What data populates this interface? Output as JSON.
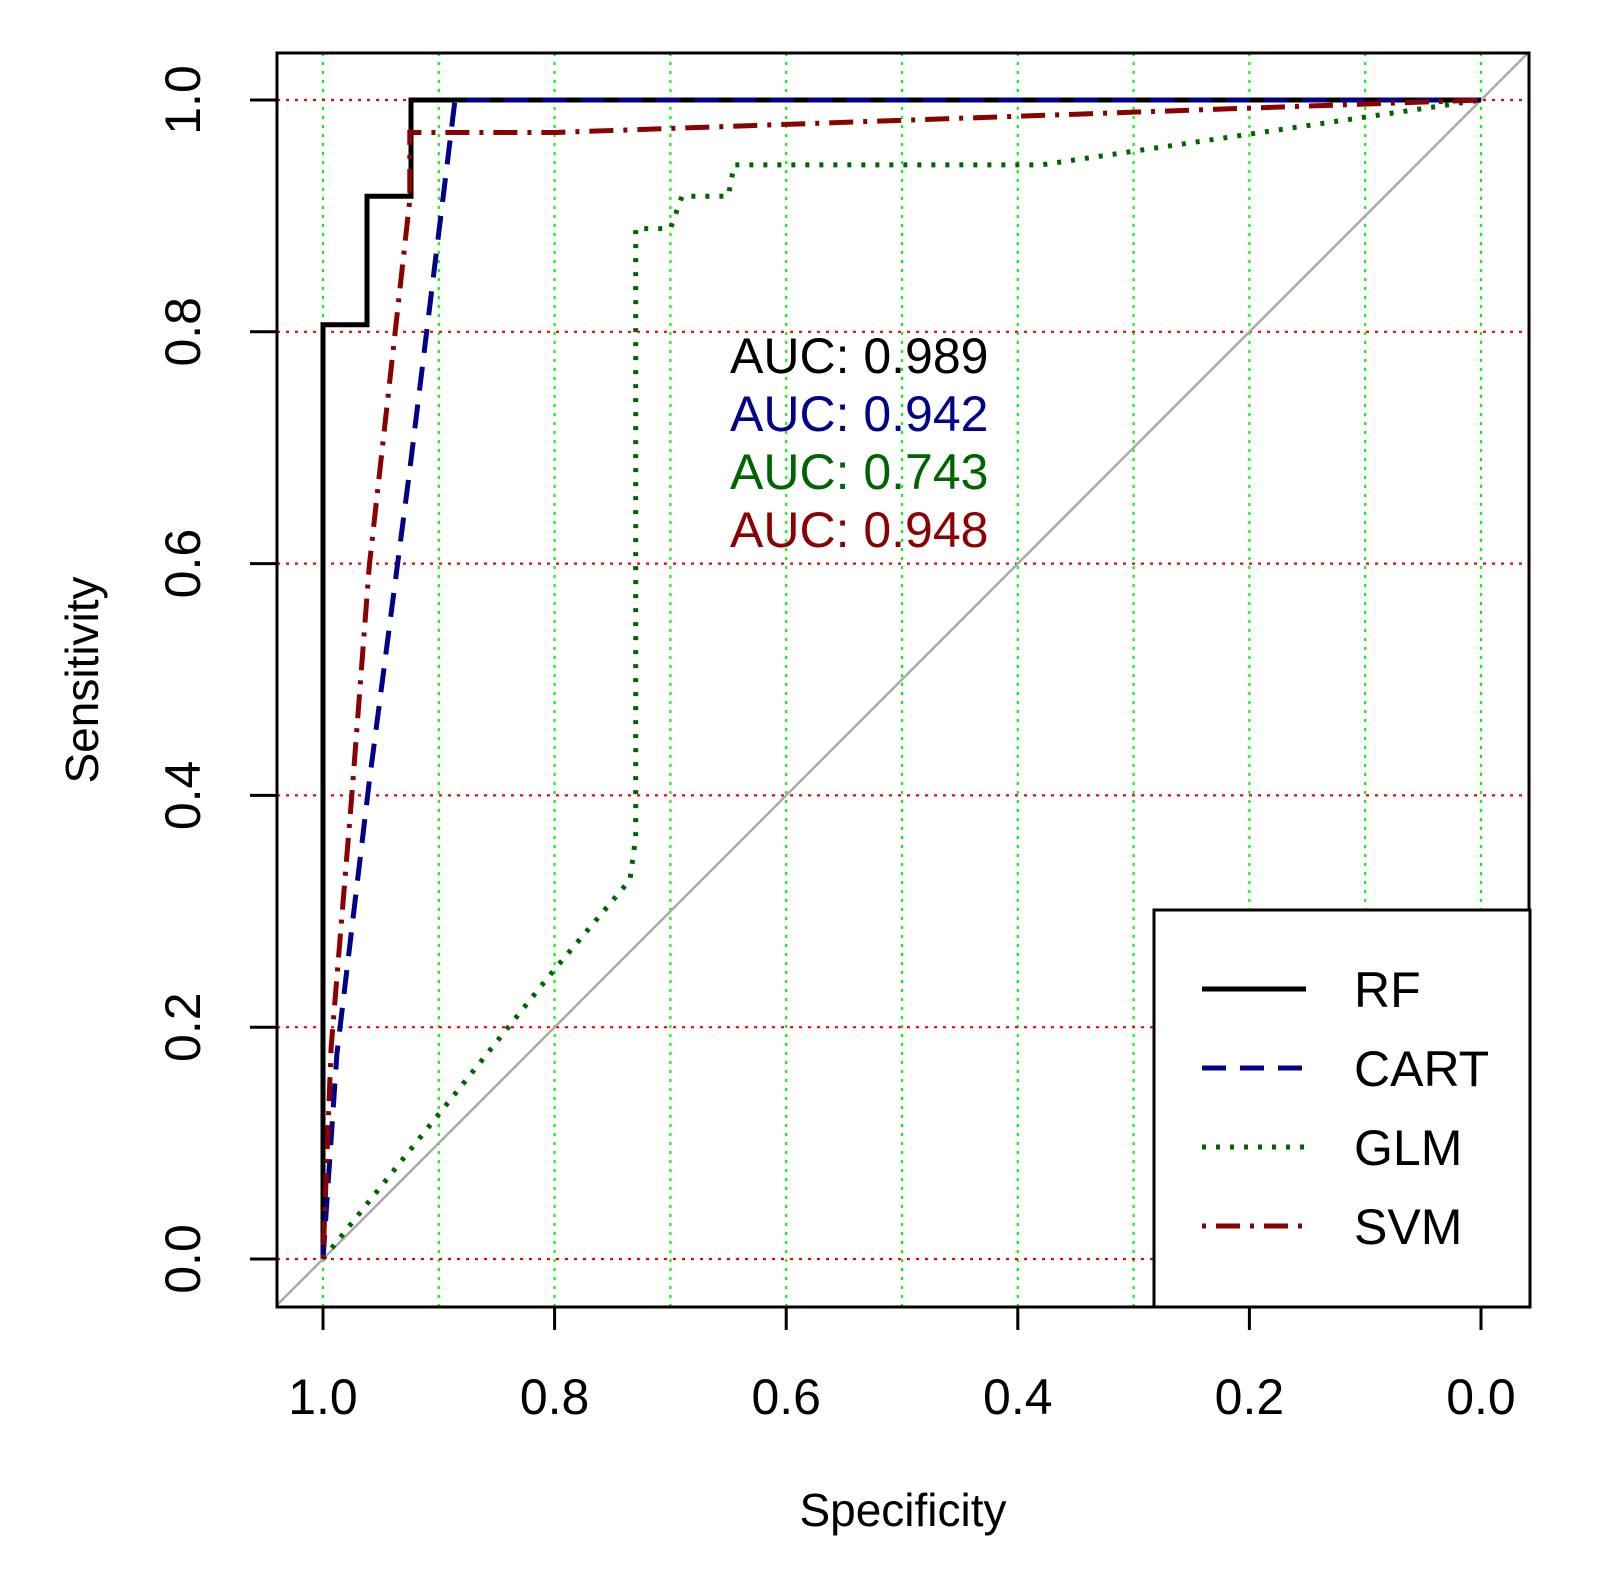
{
  "chart_data": {
    "type": "line",
    "title": "",
    "xlabel": "Specificity",
    "ylabel": "Sensitivity",
    "xlim": [
      1.0,
      0.0
    ],
    "ylim": [
      0.0,
      1.0
    ],
    "x_reversed": true,
    "xticks": [
      "1.0",
      "0.8",
      "0.6",
      "0.4",
      "0.2",
      "0.0"
    ],
    "yticks": [
      "0.0",
      "0.2",
      "0.4",
      "0.6",
      "0.8",
      "1.0"
    ],
    "grid": {
      "vertical": [
        1.0,
        0.9,
        0.8,
        0.7,
        0.6,
        0.5,
        0.4,
        0.3,
        0.2,
        0.1,
        0.0
      ],
      "horizontal": [
        0.0,
        0.2,
        0.4,
        0.6,
        0.8,
        1.0
      ],
      "vertical_color": "#00ff00",
      "horizontal_color": "#ff0000"
    },
    "diagonal_color": "#aaaaaa",
    "legend_position": "bottom-right",
    "series": [
      {
        "name": "RF",
        "color": "#000000",
        "dash": "solid",
        "auc_label": "AUC: 0.989",
        "specificity": [
          1.0,
          1.0,
          0.962,
          0.962,
          0.962,
          0.924,
          0.924,
          0.924,
          0.0
        ],
        "sensitivity": [
          0.0,
          0.806,
          0.806,
          0.806,
          0.917,
          0.917,
          0.917,
          1.0,
          1.0
        ]
      },
      {
        "name": "CART",
        "color": "#00008b",
        "dash": "dashed",
        "auc_label": "AUC: 0.942",
        "specificity": [
          1.0,
          0.988,
          0.96,
          0.925,
          0.886,
          0.0
        ],
        "sensitivity": [
          0.0,
          0.177,
          0.412,
          0.681,
          1.0,
          1.0
        ]
      },
      {
        "name": "GLM",
        "color": "#006400",
        "dash": "dotted",
        "auc_label": "AUC: 0.743",
        "specificity": [
          1.0,
          0.8,
          0.735,
          0.73,
          0.73,
          0.7,
          0.69,
          0.65,
          0.645,
          0.38,
          0.0
        ],
        "sensitivity": [
          0.0,
          0.25,
          0.327,
          0.364,
          0.889,
          0.889,
          0.917,
          0.917,
          0.944,
          0.944,
          1.0
        ]
      },
      {
        "name": "SVM",
        "color": "#8b0000",
        "dash": "dotdash",
        "auc_label": "AUC: 0.948",
        "specificity": [
          1.0,
          0.993,
          0.975,
          0.96,
          0.925,
          0.925,
          0.8,
          0.0
        ],
        "sensitivity": [
          0.0,
          0.182,
          0.402,
          0.598,
          0.914,
          0.972,
          0.972,
          1.0
        ]
      }
    ]
  }
}
